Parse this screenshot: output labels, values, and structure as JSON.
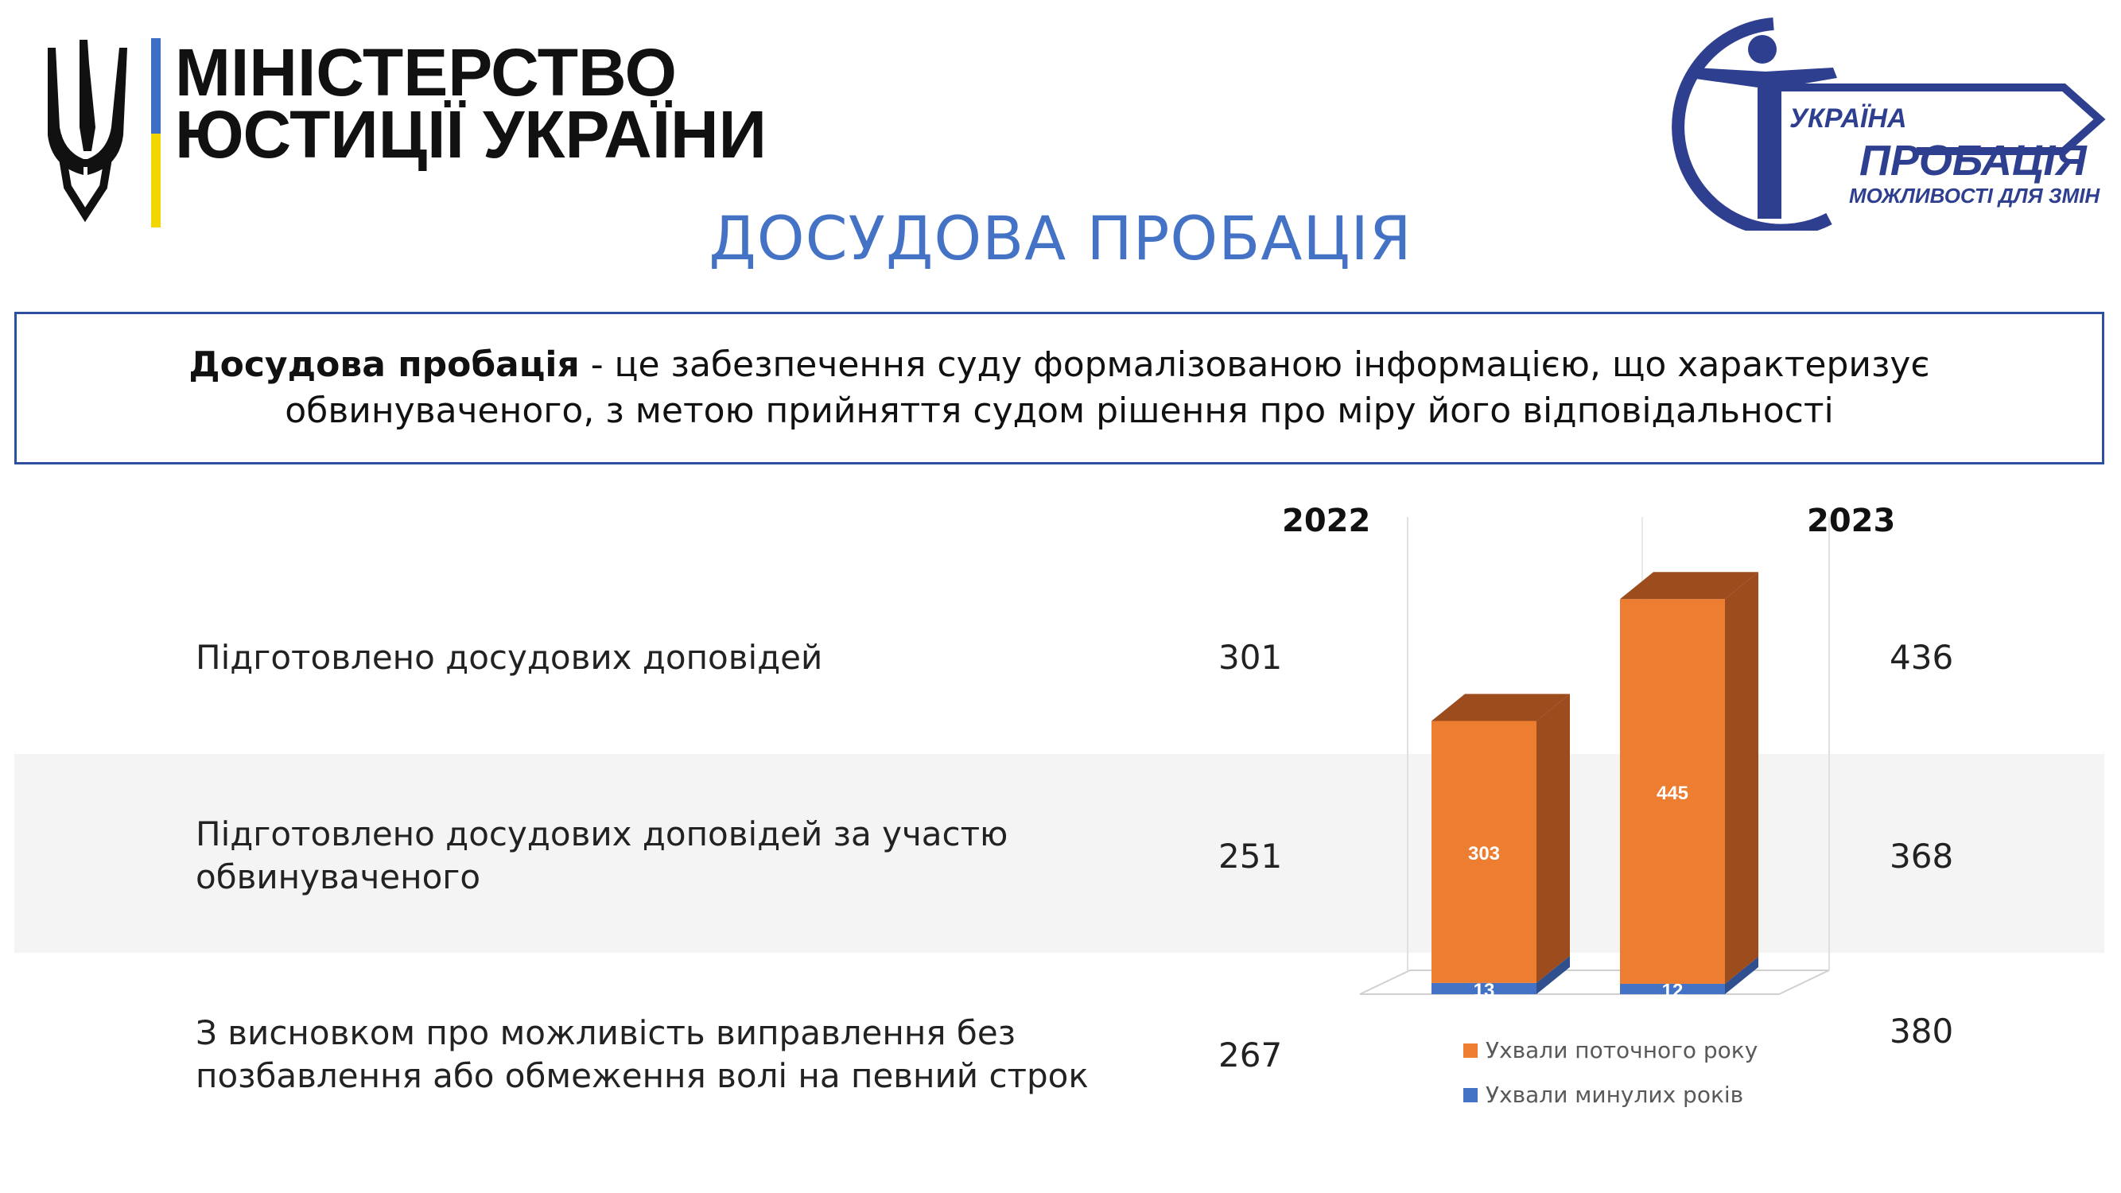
{
  "header": {
    "ministry_line1": "МІНІСТЕРСТВО",
    "ministry_line2": "ЮСТИЦІЇ УКРАЇНИ",
    "probation_logo_line1": "УКРАЇНА",
    "probation_logo_line2": "ПРОБАЦІЯ",
    "probation_logo_line3": "МОЖЛИВОСТІ ДЛЯ ЗМІН"
  },
  "page_title": "ДОСУДОВА ПРОБАЦІЯ",
  "definition": {
    "term": "Досудова пробація",
    "text": " - це забезпечення суду формалізованою інформацією, що характеризує обвинуваченого, з метою прийняття судом рішення про міру його відповідальності"
  },
  "years": [
    "2022",
    "2023"
  ],
  "rows": [
    {
      "label": "Підготовлено досудових доповідей",
      "v2022": "301",
      "v2023": "436"
    },
    {
      "label": "Підготовлено досудових доповідей за участю обвинуваченого",
      "v2022": "251",
      "v2023": "368"
    },
    {
      "label": "З висновком про можливість виправлення без позбавлення або обмеження волі на певний строк",
      "v2022": "267",
      "v2023": "380"
    }
  ],
  "chart_data": {
    "type": "bar",
    "stacked": true,
    "style": "3d",
    "categories": [
      "2022",
      "2023"
    ],
    "series": [
      {
        "name": "Ухвали минулих років",
        "values": [
          13,
          12
        ],
        "color": "#4472c4",
        "side_color": "#2f4f8f"
      },
      {
        "name": "Ухвали поточного року",
        "values": [
          303,
          445
        ],
        "color": "#ed7d31",
        "side_color": "#9c4c1d"
      }
    ],
    "legend_position": "bottom",
    "grid": false
  }
}
